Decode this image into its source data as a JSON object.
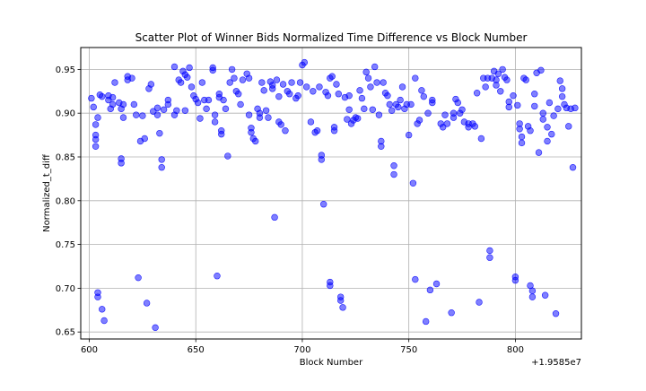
{
  "chart_data": {
    "type": "scatter",
    "title": "Scatter Plot of Winner Bids Normalized Time Difference vs Block Number",
    "xlabel": "Block Number",
    "ylabel": "Normalized_t_diff",
    "x_offset_label": "+1.9585e7",
    "x_tick_labels": [
      "600",
      "650",
      "700",
      "750",
      "800"
    ],
    "y_tick_labels": [
      "0.65",
      "0.70",
      "0.75",
      "0.80",
      "0.85",
      "0.90",
      "0.95"
    ],
    "xlim": [
      19585596,
      19585831
    ],
    "ylim": [
      0.642,
      0.975
    ],
    "x_ticks": [
      19585600,
      19585650,
      19585700,
      19585750,
      19585800
    ],
    "y_ticks": [
      0.65,
      0.7,
      0.75,
      0.8,
      0.85,
      0.9,
      0.95
    ],
    "grid": true,
    "marker_color": "#0000ff",
    "marker_alpha": 0.5,
    "points": [
      [
        19585601,
        0.917
      ],
      [
        19585602,
        0.907
      ],
      [
        19585603,
        0.875
      ],
      [
        19585603,
        0.87
      ],
      [
        19585603,
        0.862
      ],
      [
        19585603,
        0.887
      ],
      [
        19585604,
        0.895
      ],
      [
        19585604,
        0.695
      ],
      [
        19585604,
        0.69
      ],
      [
        19585605,
        0.921
      ],
      [
        19585606,
        0.919
      ],
      [
        19585606,
        0.676
      ],
      [
        19585607,
        0.663
      ],
      [
        19585609,
        0.92
      ],
      [
        19585609,
        0.915
      ],
      [
        19585610,
        0.905
      ],
      [
        19585611,
        0.918
      ],
      [
        19585611,
        0.91
      ],
      [
        19585612,
        0.935
      ],
      [
        19585614,
        0.912
      ],
      [
        19585615,
        0.905
      ],
      [
        19585615,
        0.848
      ],
      [
        19585615,
        0.843
      ],
      [
        19585616,
        0.895
      ],
      [
        19585616,
        0.91
      ],
      [
        19585618,
        0.942
      ],
      [
        19585618,
        0.938
      ],
      [
        19585620,
        0.94
      ],
      [
        19585621,
        0.91
      ],
      [
        19585622,
        0.898
      ],
      [
        19585623,
        0.712
      ],
      [
        19585624,
        0.868
      ],
      [
        19585625,
        0.897
      ],
      [
        19585626,
        0.871
      ],
      [
        19585627,
        0.683
      ],
      [
        19585628,
        0.928
      ],
      [
        19585629,
        0.933
      ],
      [
        19585630,
        0.902
      ],
      [
        19585631,
        0.655
      ],
      [
        19585632,
        0.906
      ],
      [
        19585632,
        0.898
      ],
      [
        19585633,
        0.877
      ],
      [
        19585634,
        0.847
      ],
      [
        19585634,
        0.838
      ],
      [
        19585635,
        0.904
      ],
      [
        19585637,
        0.915
      ],
      [
        19585637,
        0.91
      ],
      [
        19585640,
        0.953
      ],
      [
        19585640,
        0.898
      ],
      [
        19585641,
        0.903
      ],
      [
        19585642,
        0.938
      ],
      [
        19585643,
        0.935
      ],
      [
        19585644,
        0.948
      ],
      [
        19585645,
        0.944
      ],
      [
        19585645,
        0.903
      ],
      [
        19585646,
        0.941
      ],
      [
        19585647,
        0.952
      ],
      [
        19585648,
        0.93
      ],
      [
        19585649,
        0.92
      ],
      [
        19585650,
        0.916
      ],
      [
        19585651,
        0.912
      ],
      [
        19585652,
        0.894
      ],
      [
        19585653,
        0.935
      ],
      [
        19585654,
        0.915
      ],
      [
        19585655,
        0.905
      ],
      [
        19585656,
        0.915
      ],
      [
        19585658,
        0.952
      ],
      [
        19585658,
        0.949
      ],
      [
        19585659,
        0.898
      ],
      [
        19585659,
        0.89
      ],
      [
        19585660,
        0.714
      ],
      [
        19585661,
        0.922
      ],
      [
        19585661,
        0.918
      ],
      [
        19585662,
        0.88
      ],
      [
        19585662,
        0.876
      ],
      [
        19585663,
        0.915
      ],
      [
        19585664,
        0.905
      ],
      [
        19585665,
        0.851
      ],
      [
        19585666,
        0.935
      ],
      [
        19585667,
        0.95
      ],
      [
        19585668,
        0.94
      ],
      [
        19585669,
        0.925
      ],
      [
        19585670,
        0.922
      ],
      [
        19585671,
        0.91
      ],
      [
        19585672,
        0.938
      ],
      [
        19585674,
        0.945
      ],
      [
        19585675,
        0.94
      ],
      [
        19585675,
        0.898
      ],
      [
        19585676,
        0.883
      ],
      [
        19585676,
        0.878
      ],
      [
        19585677,
        0.871
      ],
      [
        19585678,
        0.868
      ],
      [
        19585679,
        0.905
      ],
      [
        19585680,
        0.9
      ],
      [
        19585680,
        0.895
      ],
      [
        19585681,
        0.935
      ],
      [
        19585682,
        0.926
      ],
      [
        19585683,
        0.903
      ],
      [
        19585684,
        0.895
      ],
      [
        19585685,
        0.936
      ],
      [
        19585686,
        0.932
      ],
      [
        19585686,
        0.928
      ],
      [
        19585687,
        0.781
      ],
      [
        19585688,
        0.938
      ],
      [
        19585689,
        0.919
      ],
      [
        19585689,
        0.89
      ],
      [
        19585690,
        0.887
      ],
      [
        19585691,
        0.933
      ],
      [
        19585692,
        0.88
      ],
      [
        19585693,
        0.925
      ],
      [
        19585694,
        0.922
      ],
      [
        19585695,
        0.935
      ],
      [
        19585697,
        0.917
      ],
      [
        19585698,
        0.92
      ],
      [
        19585699,
        0.935
      ],
      [
        19585700,
        0.955
      ],
      [
        19585701,
        0.958
      ],
      [
        19585702,
        0.93
      ],
      [
        19585704,
        0.89
      ],
      [
        19585705,
        0.925
      ],
      [
        19585706,
        0.878
      ],
      [
        19585707,
        0.88
      ],
      [
        19585708,
        0.93
      ],
      [
        19585709,
        0.852
      ],
      [
        19585709,
        0.847
      ],
      [
        19585710,
        0.796
      ],
      [
        19585711,
        0.924
      ],
      [
        19585712,
        0.92
      ],
      [
        19585713,
        0.94
      ],
      [
        19585713,
        0.707
      ],
      [
        19585713,
        0.703
      ],
      [
        19585714,
        0.942
      ],
      [
        19585715,
        0.884
      ],
      [
        19585715,
        0.88
      ],
      [
        19585716,
        0.933
      ],
      [
        19585717,
        0.922
      ],
      [
        19585718,
        0.69
      ],
      [
        19585718,
        0.686
      ],
      [
        19585719,
        0.678
      ],
      [
        19585720,
        0.918
      ],
      [
        19585721,
        0.893
      ],
      [
        19585722,
        0.92
      ],
      [
        19585722,
        0.904
      ],
      [
        19585723,
        0.888
      ],
      [
        19585724,
        0.892
      ],
      [
        19585725,
        0.895
      ],
      [
        19585726,
        0.894
      ],
      [
        19585727,
        0.926
      ],
      [
        19585728,
        0.917
      ],
      [
        19585729,
        0.905
      ],
      [
        19585730,
        0.947
      ],
      [
        19585731,
        0.94
      ],
      [
        19585732,
        0.93
      ],
      [
        19585733,
        0.904
      ],
      [
        19585734,
        0.953
      ],
      [
        19585735,
        0.935
      ],
      [
        19585736,
        0.898
      ],
      [
        19585737,
        0.868
      ],
      [
        19585737,
        0.862
      ],
      [
        19585738,
        0.935
      ],
      [
        19585739,
        0.923
      ],
      [
        19585740,
        0.92
      ],
      [
        19585741,
        0.91
      ],
      [
        19585742,
        0.903
      ],
      [
        19585743,
        0.84
      ],
      [
        19585743,
        0.83
      ],
      [
        19585744,
        0.91
      ],
      [
        19585745,
        0.907
      ],
      [
        19585746,
        0.915
      ],
      [
        19585747,
        0.93
      ],
      [
        19585748,
        0.905
      ],
      [
        19585749,
        0.91
      ],
      [
        19585750,
        0.875
      ],
      [
        19585751,
        0.91
      ],
      [
        19585752,
        0.82
      ],
      [
        19585753,
        0.94
      ],
      [
        19585753,
        0.71
      ],
      [
        19585754,
        0.888
      ],
      [
        19585755,
        0.892
      ],
      [
        19585756,
        0.926
      ],
      [
        19585757,
        0.919
      ],
      [
        19585758,
        0.662
      ],
      [
        19585759,
        0.9
      ],
      [
        19585760,
        0.698
      ],
      [
        19585761,
        0.915
      ],
      [
        19585761,
        0.912
      ],
      [
        19585763,
        0.705
      ],
      [
        19585765,
        0.888
      ],
      [
        19585766,
        0.884
      ],
      [
        19585767,
        0.898
      ],
      [
        19585768,
        0.888
      ],
      [
        19585770,
        0.672
      ],
      [
        19585771,
        0.9
      ],
      [
        19585771,
        0.895
      ],
      [
        19585772,
        0.916
      ],
      [
        19585773,
        0.912
      ],
      [
        19585774,
        0.9
      ],
      [
        19585775,
        0.904
      ],
      [
        19585776,
        0.89
      ],
      [
        19585778,
        0.888
      ],
      [
        19585778,
        0.884
      ],
      [
        19585780,
        0.888
      ],
      [
        19585781,
        0.885
      ],
      [
        19585782,
        0.923
      ],
      [
        19585783,
        0.684
      ],
      [
        19585784,
        0.871
      ],
      [
        19585785,
        0.94
      ],
      [
        19585786,
        0.93
      ],
      [
        19585787,
        0.94
      ],
      [
        19585788,
        0.743
      ],
      [
        19585788,
        0.735
      ],
      [
        19585789,
        0.94
      ],
      [
        19585790,
        0.948
      ],
      [
        19585791,
        0.938
      ],
      [
        19585791,
        0.932
      ],
      [
        19585792,
        0.945
      ],
      [
        19585793,
        0.925
      ],
      [
        19585794,
        0.95
      ],
      [
        19585795,
        0.941
      ],
      [
        19585796,
        0.938
      ],
      [
        19585797,
        0.913
      ],
      [
        19585797,
        0.907
      ],
      [
        19585799,
        0.92
      ],
      [
        19585800,
        0.713
      ],
      [
        19585800,
        0.709
      ],
      [
        19585801,
        0.909
      ],
      [
        19585802,
        0.888
      ],
      [
        19585802,
        0.882
      ],
      [
        19585803,
        0.873
      ],
      [
        19585803,
        0.866
      ],
      [
        19585804,
        0.94
      ],
      [
        19585805,
        0.938
      ],
      [
        19585806,
        0.885
      ],
      [
        19585807,
        0.88
      ],
      [
        19585807,
        0.703
      ],
      [
        19585808,
        0.697
      ],
      [
        19585808,
        0.69
      ],
      [
        19585809,
        0.908
      ],
      [
        19585809,
        0.922
      ],
      [
        19585810,
        0.946
      ],
      [
        19585811,
        0.855
      ],
      [
        19585812,
        0.949
      ],
      [
        19585813,
        0.9
      ],
      [
        19585813,
        0.893
      ],
      [
        19585814,
        0.692
      ],
      [
        19585815,
        0.884
      ],
      [
        19585815,
        0.868
      ],
      [
        19585816,
        0.912
      ],
      [
        19585817,
        0.876
      ],
      [
        19585818,
        0.897
      ],
      [
        19585819,
        0.671
      ],
      [
        19585820,
        0.905
      ],
      [
        19585821,
        0.937
      ],
      [
        19585822,
        0.928
      ],
      [
        19585822,
        0.919
      ],
      [
        19585823,
        0.91
      ],
      [
        19585824,
        0.906
      ],
      [
        19585825,
        0.885
      ],
      [
        19585826,
        0.905
      ],
      [
        19585827,
        0.838
      ],
      [
        19585828,
        0.906
      ]
    ]
  }
}
